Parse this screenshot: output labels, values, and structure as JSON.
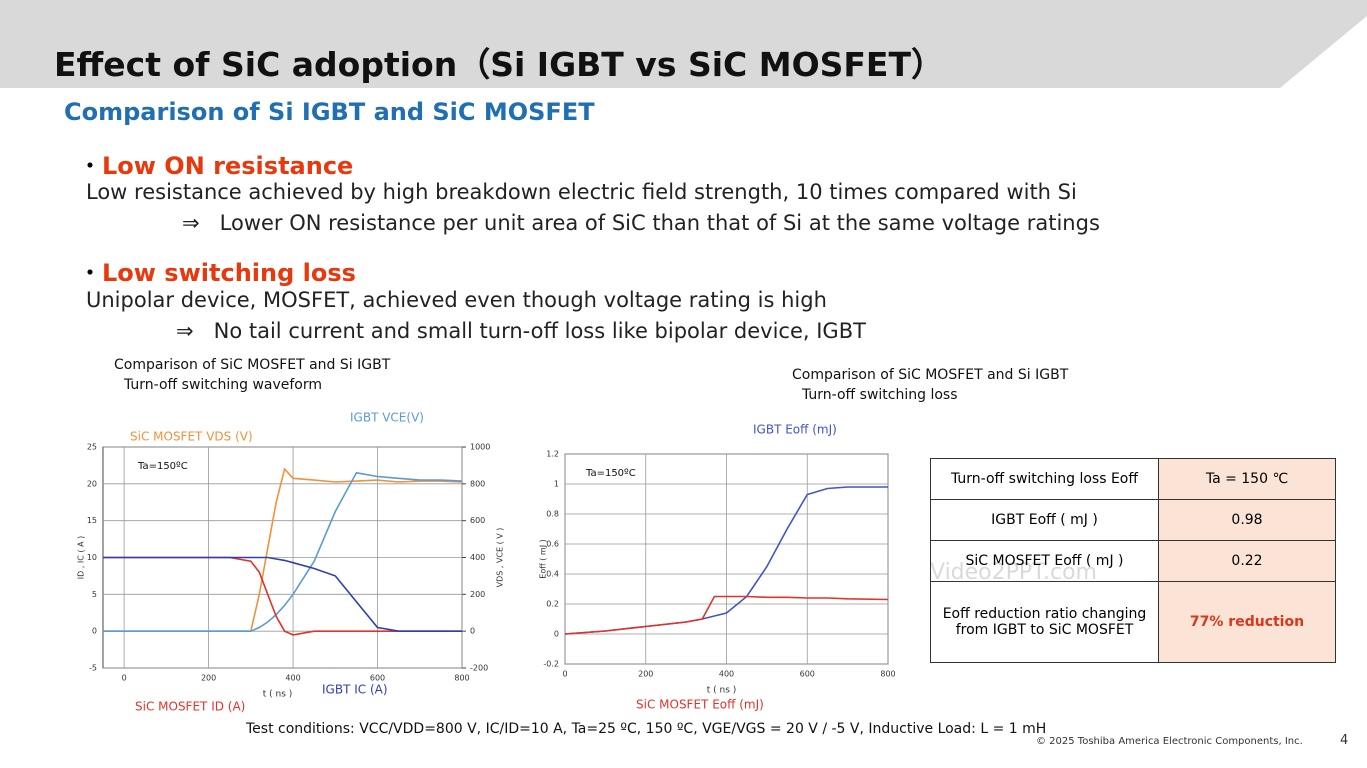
{
  "header": {
    "title": "Effect of SiC adoption（Si IGBT vs SiC MOSFET）"
  },
  "subtitle": "Comparison of Si IGBT and SiC MOSFET",
  "bullets": [
    {
      "marker": "・",
      "heading": "Low ON resistance",
      "text": "Low resistance achieved by high breakdown electric field strength, 10 times compared with Si",
      "arrow": "⇒",
      "detail": "Lower ON resistance per unit area of SiC than that of Si at the same voltage ratings"
    },
    {
      "marker": "・",
      "heading": "Low switching loss",
      "text": "Unipolar device, MOSFET, achieved even though voltage rating is high",
      "arrow": "⇒",
      "detail": "No tail current and small turn-off loss like bipolar device, IGBT"
    }
  ],
  "chart_data": [
    {
      "type": "line",
      "title": "Comparison of SiC MOSFET and Si IGBT",
      "subtitle": "Turn-off switching waveform",
      "annotation": "Ta=150ºC",
      "x_label": "t ( ns )",
      "y_label": "ID , IC ( A )",
      "y2_label": "VDS , VCE ( V )",
      "x": [
        -50,
        0,
        100,
        200,
        250,
        300,
        320,
        340,
        360,
        380,
        400,
        450,
        500,
        550,
        600,
        650,
        700,
        750,
        800
      ],
      "xlim": [
        -50,
        800
      ],
      "xticks": [
        0,
        200,
        400,
        600,
        800
      ],
      "ylim": [
        -5,
        25
      ],
      "yticks": [
        -5,
        0,
        5,
        10,
        15,
        20,
        25
      ],
      "y2lim": [
        -200,
        1000
      ],
      "y2ticks": [
        -200,
        0,
        200,
        400,
        600,
        800,
        1000
      ],
      "grid": true,
      "series": [
        {
          "name": "SiC MOSFET  VDS (V)",
          "color": "#f0923a",
          "axis": "y2",
          "values": [
            0,
            0,
            0,
            0,
            0,
            0,
            200,
            450,
            700,
            880,
            830,
            820,
            810,
            815,
            820,
            810,
            815,
            815,
            810
          ]
        },
        {
          "name": "IGBT VCE(V)",
          "color": "#5b9bd5",
          "axis": "y2",
          "values": [
            0,
            0,
            0,
            0,
            0,
            0,
            20,
            50,
            90,
            140,
            200,
            380,
            650,
            860,
            840,
            830,
            820,
            820,
            815
          ]
        },
        {
          "name": "SiC MOSFET ID (A)",
          "color": "#e0342a",
          "values": [
            10,
            10,
            10,
            10,
            10,
            9.5,
            8,
            5,
            2,
            0,
            -0.5,
            0,
            0,
            0,
            0,
            0,
            0,
            0,
            0
          ]
        },
        {
          "name": "IGBT IC (A)",
          "color": "#2e3fb0",
          "values": [
            10,
            10,
            10,
            10,
            10,
            10,
            10,
            10,
            9.8,
            9.6,
            9.3,
            8.5,
            7.5,
            4,
            0.5,
            0,
            0,
            0,
            0
          ]
        }
      ]
    },
    {
      "type": "line",
      "title": "Comparison of SiC MOSFET and Si IGBT",
      "subtitle": "Turn-off switching loss",
      "annotation": "Ta=150ºC",
      "x_label": "t ( ns )",
      "y_label": "Eoff ( mJ )",
      "x": [
        0,
        100,
        200,
        300,
        340,
        370,
        400,
        450,
        500,
        550,
        600,
        650,
        700,
        800
      ],
      "xlim": [
        0,
        800
      ],
      "xticks": [
        0,
        200,
        400,
        600,
        800
      ],
      "ylim": [
        -0.2,
        1.2
      ],
      "yticks": [
        -0.2,
        0,
        0.2,
        0.4,
        0.6,
        0.8,
        1,
        1.2
      ],
      "grid": true,
      "series": [
        {
          "name": "IGBT Eoff (mJ)",
          "color": "#3f55c8",
          "values": [
            0,
            0.02,
            0.05,
            0.08,
            0.1,
            0.12,
            0.14,
            0.25,
            0.45,
            0.7,
            0.93,
            0.97,
            0.98,
            0.98
          ]
        },
        {
          "name": "SiC MOSFET Eoff (mJ)",
          "color": "#e0342a",
          "values": [
            0,
            0.02,
            0.05,
            0.08,
            0.1,
            0.25,
            0.25,
            0.25,
            0.245,
            0.245,
            0.24,
            0.24,
            0.235,
            0.23
          ]
        }
      ]
    }
  ],
  "table": {
    "rows": [
      [
        "Turn-off switching loss   Eoff",
        "Ta = 150 ℃"
      ],
      [
        "IGBT Eoff ( mJ )",
        "0.98"
      ],
      [
        "SiC MOSFET  Eoff ( mJ )",
        "0.22"
      ],
      [
        "Eoff reduction ratio changing from IGBT to SiC MOSFET",
        "77% reduction"
      ]
    ]
  },
  "test_conditions": "Test conditions:    VCC/VDD=800 V, IC/ID=10 A, Ta=25 ºC, 150 ºC, VGE/VGS = 20 V / -5 V, Inductive Load: L = 1 mH",
  "watermark": "Video2PPT.com",
  "copyright": "© 2025 Toshiba America Electronic Components, Inc.",
  "page_number": "4"
}
